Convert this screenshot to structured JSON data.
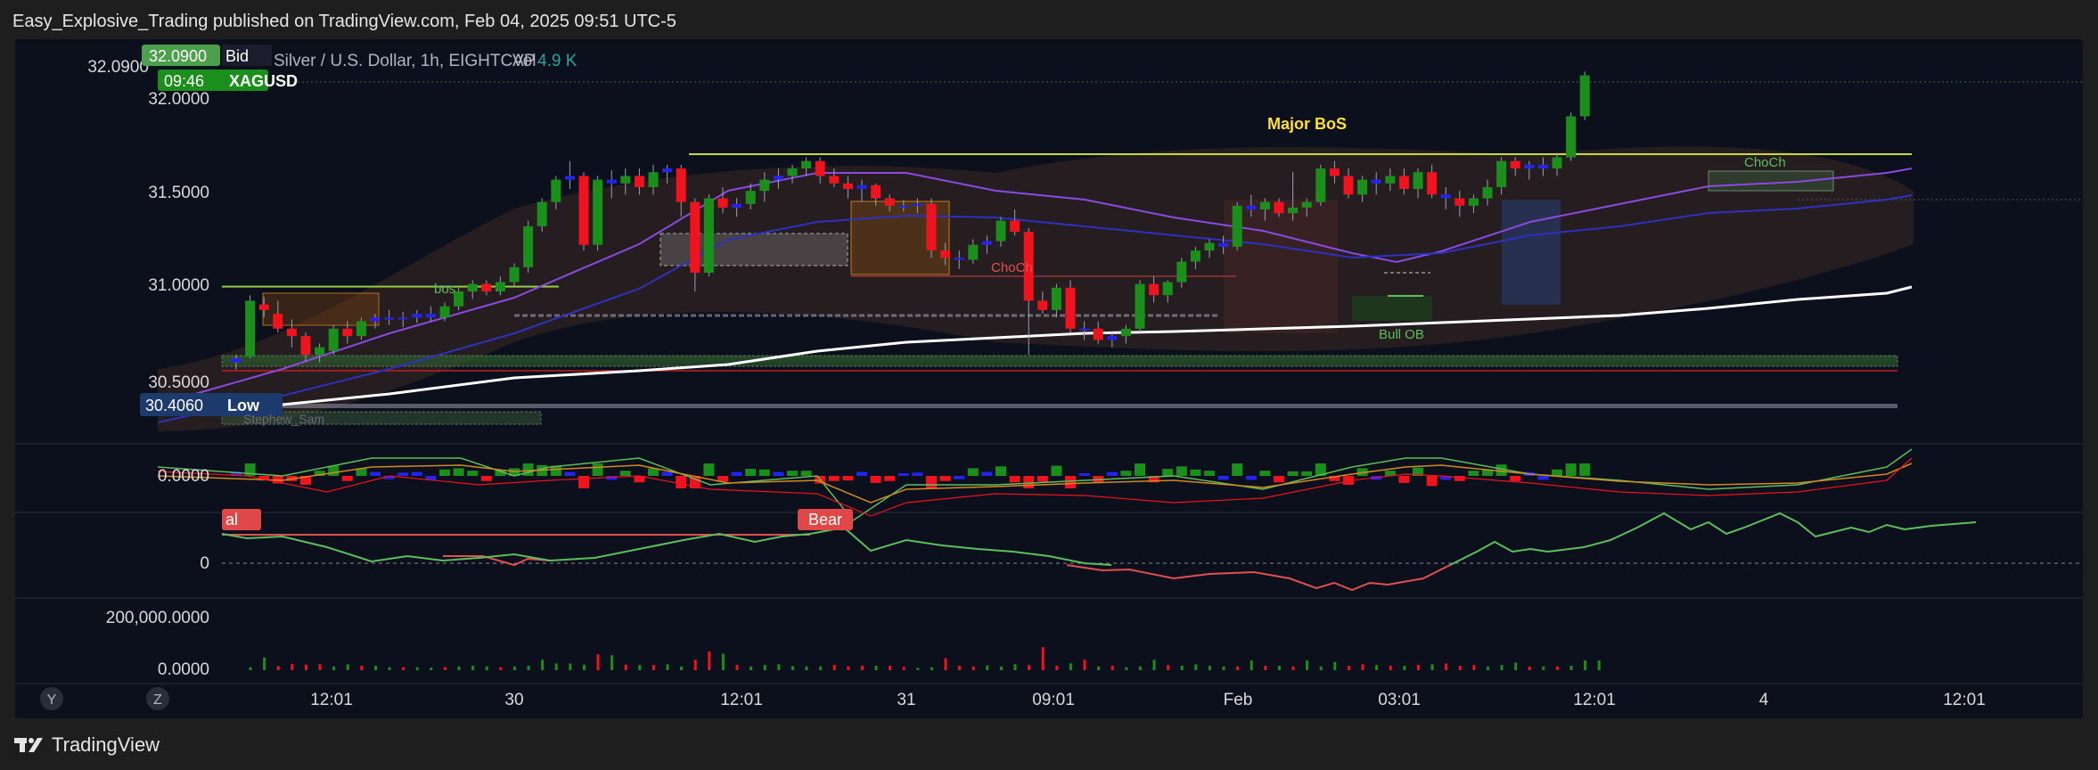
{
  "header": {
    "text": "Easy_Explosive_Trading published on TradingView.com, Feb 04, 2025 09:51 UTC-5"
  },
  "footer": {
    "brand": "TradingView"
  },
  "legend": {
    "symbol_desc": "Silver / U.S. Dollar, 1h, EIGHTCAP",
    "vol_label": "Vol",
    "vol_value": "4.9 K"
  },
  "price_tags": {
    "bid_price": "32.0900",
    "bid_label": "Bid",
    "countdown": "09:46",
    "symbol": "XAGUSD",
    "low_price": "30.4060",
    "low_label": "Low"
  },
  "annotations": {
    "major_bos": "Major BoS",
    "choch_mid": "ChoCh",
    "choch_right": "ChoCh",
    "bos": "bos",
    "bull_ob": "Bull OB",
    "bear_tag": "Bear",
    "al_tag": "al",
    "watermark": "Stephew_Sam"
  },
  "pane_labels": {
    "macd_zero": "0.0000",
    "osc_zero": "0",
    "vol_top": "200,000.0000",
    "vol_zero": "0.0000"
  },
  "buttons": {
    "y": "Y",
    "z": "Z"
  },
  "colors": {
    "background": "#0c0f1c",
    "bull": "#1b8f1b",
    "bear": "#f0121d",
    "neutral": "#2424f0",
    "ema200": "#ffffff",
    "accent_green": "#5cbe5c"
  },
  "chart_data": [
    {
      "type": "candlestick",
      "title": "Silver / U.S. Dollar, 1h, EIGHTCAP",
      "yaxis": {
        "ticks": [
          "30.5000",
          "31.0000",
          "31.5000",
          "32.0000"
        ],
        "range": [
          30.3,
          32.2
        ]
      },
      "xaxis": {
        "ticks": [
          "12:01",
          "30",
          "12:01",
          "31",
          "09:01",
          "Feb",
          "03:01",
          "12:01",
          "4",
          "12:01"
        ]
      },
      "last_price": 32.09,
      "ohlc_approx": [
        [
          30.62,
          30.66,
          30.58,
          30.64
        ],
        [
          30.65,
          30.98,
          30.64,
          30.95
        ],
        [
          30.93,
          30.97,
          30.86,
          30.9
        ],
        [
          30.88,
          30.95,
          30.78,
          30.8
        ],
        [
          30.8,
          30.85,
          30.7,
          30.76
        ],
        [
          30.76,
          30.78,
          30.62,
          30.66
        ],
        [
          30.66,
          30.72,
          30.62,
          30.7
        ],
        [
          30.68,
          30.82,
          30.66,
          30.8
        ],
        [
          30.8,
          30.84,
          30.72,
          30.76
        ],
        [
          30.76,
          30.86,
          30.74,
          30.84
        ],
        [
          30.84,
          30.88,
          30.8,
          30.86
        ],
        [
          30.86,
          30.9,
          30.82,
          30.85
        ],
        [
          30.85,
          30.89,
          30.81,
          30.86
        ],
        [
          30.86,
          30.9,
          30.83,
          30.88
        ],
        [
          30.88,
          30.92,
          30.84,
          30.86
        ],
        [
          30.86,
          30.94,
          30.84,
          30.92
        ],
        [
          30.92,
          31.02,
          30.9,
          31.0
        ],
        [
          31.0,
          31.06,
          30.96,
          31.04
        ],
        [
          31.04,
          31.06,
          30.98,
          31.0
        ],
        [
          31.0,
          31.08,
          30.98,
          31.05
        ],
        [
          31.05,
          31.15,
          31.03,
          31.13
        ],
        [
          31.13,
          31.38,
          31.1,
          31.35
        ],
        [
          31.35,
          31.5,
          31.32,
          31.48
        ],
        [
          31.48,
          31.62,
          31.44,
          31.6
        ],
        [
          31.6,
          31.7,
          31.55,
          31.62
        ],
        [
          31.62,
          31.64,
          31.22,
          31.25
        ],
        [
          31.25,
          31.62,
          31.22,
          31.6
        ],
        [
          31.6,
          31.65,
          31.5,
          31.58
        ],
        [
          31.58,
          31.66,
          31.52,
          31.62
        ],
        [
          31.62,
          31.66,
          31.52,
          31.56
        ],
        [
          31.56,
          31.68,
          31.52,
          31.64
        ],
        [
          31.64,
          31.68,
          31.58,
          31.66
        ],
        [
          31.66,
          31.68,
          31.4,
          31.48
        ],
        [
          31.48,
          31.5,
          31.0,
          31.1
        ],
        [
          31.1,
          31.52,
          31.08,
          31.5
        ],
        [
          31.5,
          31.56,
          31.42,
          31.45
        ],
        [
          31.45,
          31.5,
          31.4,
          31.47
        ],
        [
          31.47,
          31.58,
          31.44,
          31.54
        ],
        [
          31.54,
          31.64,
          31.48,
          31.6
        ],
        [
          31.6,
          31.66,
          31.55,
          31.62
        ],
        [
          31.62,
          31.68,
          31.58,
          31.66
        ],
        [
          31.66,
          31.72,
          31.62,
          31.7
        ],
        [
          31.7,
          31.72,
          31.58,
          31.62
        ],
        [
          31.62,
          31.66,
          31.56,
          31.58
        ],
        [
          31.58,
          31.62,
          31.5,
          31.55
        ],
        [
          31.55,
          31.6,
          31.48,
          31.57
        ],
        [
          31.57,
          31.58,
          31.46,
          31.5
        ],
        [
          31.5,
          31.52,
          31.43,
          31.46
        ],
        [
          31.46,
          31.49,
          31.43,
          31.46
        ],
        [
          31.46,
          31.5,
          31.42,
          31.47
        ],
        [
          31.47,
          31.5,
          31.18,
          31.22
        ],
        [
          31.22,
          31.26,
          31.14,
          31.18
        ],
        [
          31.18,
          31.22,
          31.12,
          31.17
        ],
        [
          31.17,
          31.28,
          31.15,
          31.25
        ],
        [
          31.25,
          31.3,
          31.2,
          31.27
        ],
        [
          31.27,
          31.4,
          31.24,
          31.38
        ],
        [
          31.38,
          31.44,
          31.3,
          31.32
        ],
        [
          31.32,
          31.34,
          30.66,
          30.95
        ],
        [
          30.95,
          31.0,
          30.88,
          30.9
        ],
        [
          30.9,
          31.04,
          30.86,
          31.02
        ],
        [
          31.02,
          31.06,
          30.78,
          30.8
        ],
        [
          30.8,
          30.84,
          30.74,
          30.8
        ],
        [
          30.8,
          30.84,
          30.72,
          30.74
        ],
        [
          30.74,
          30.78,
          30.7,
          30.76
        ],
        [
          30.76,
          30.82,
          30.72,
          30.8
        ],
        [
          30.8,
          31.06,
          30.78,
          31.04
        ],
        [
          31.04,
          31.08,
          30.94,
          30.98
        ],
        [
          30.98,
          31.06,
          30.94,
          31.05
        ],
        [
          31.05,
          31.18,
          31.02,
          31.16
        ],
        [
          31.16,
          31.24,
          31.12,
          31.22
        ],
        [
          31.22,
          31.28,
          31.18,
          31.26
        ],
        [
          31.26,
          31.3,
          31.2,
          31.24
        ],
        [
          31.24,
          31.48,
          31.22,
          31.46
        ],
        [
          31.46,
          31.52,
          31.4,
          31.44
        ],
        [
          31.44,
          31.5,
          31.38,
          31.48
        ],
        [
          31.48,
          31.5,
          31.4,
          31.42
        ],
        [
          31.42,
          31.64,
          31.38,
          31.45
        ],
        [
          31.45,
          31.5,
          31.4,
          31.48
        ],
        [
          31.48,
          31.68,
          31.46,
          31.66
        ],
        [
          31.66,
          31.7,
          31.58,
          31.62
        ],
        [
          31.62,
          31.66,
          31.5,
          31.52
        ],
        [
          31.52,
          31.62,
          31.48,
          31.6
        ],
        [
          31.6,
          31.64,
          31.52,
          31.58
        ],
        [
          31.58,
          31.66,
          31.54,
          31.62
        ],
        [
          31.62,
          31.66,
          31.52,
          31.55
        ],
        [
          31.55,
          31.66,
          31.5,
          31.64
        ],
        [
          31.64,
          31.68,
          31.5,
          31.52
        ],
        [
          31.52,
          31.56,
          31.44,
          31.5
        ],
        [
          31.5,
          31.54,
          31.4,
          31.46
        ],
        [
          31.46,
          31.52,
          31.42,
          31.5
        ],
        [
          31.5,
          31.6,
          31.46,
          31.56
        ],
        [
          31.56,
          31.72,
          31.52,
          31.7
        ],
        [
          31.7,
          31.72,
          31.62,
          31.66
        ],
        [
          31.66,
          31.7,
          31.6,
          31.68
        ],
        [
          31.68,
          31.72,
          31.62,
          31.66
        ],
        [
          31.66,
          31.74,
          31.62,
          31.72
        ],
        [
          31.72,
          31.96,
          31.7,
          31.94
        ],
        [
          31.94,
          32.18,
          31.92,
          32.16
        ]
      ],
      "ema_200": [
        [
          0,
          30.38
        ],
        [
          150,
          30.58
        ],
        [
          380,
          30.78
        ],
        [
          560,
          30.82
        ],
        [
          700,
          30.85
        ],
        [
          900,
          31.0
        ]
      ],
      "horizontal_levels": [
        {
          "label": "Major BoS",
          "price": 31.72
        },
        {
          "label": "ChoCh",
          "price": 31.08
        },
        {
          "label": "bos",
          "price": 31.02
        }
      ],
      "low_marker": 30.406
    },
    {
      "type": "histogram",
      "name": "MACD",
      "zero_label": "0.0000"
    },
    {
      "type": "line",
      "name": "oscillator",
      "zero_label": "0"
    },
    {
      "type": "bar",
      "name": "volume",
      "ticks": [
        "200,000.0000",
        "0.0000"
      ]
    }
  ]
}
